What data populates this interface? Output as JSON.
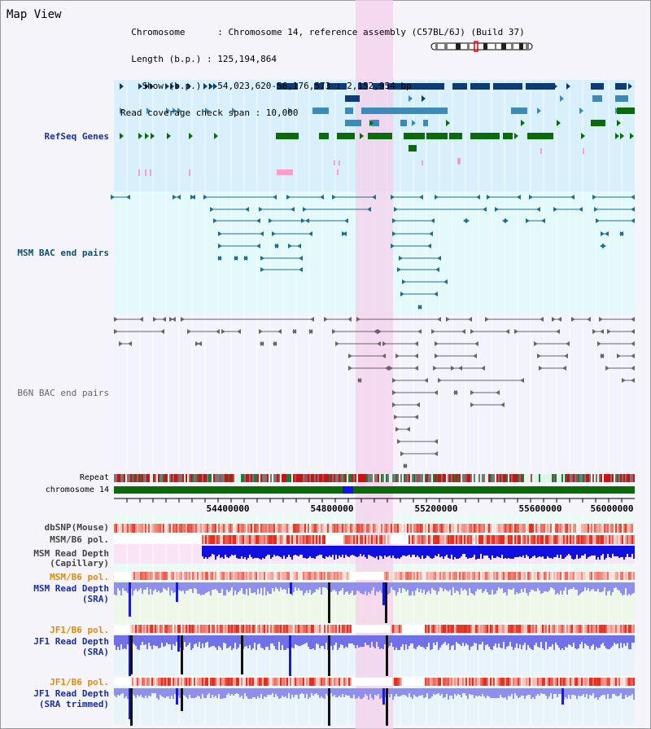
{
  "header": {
    "title": "Map View",
    "info_lines": [
      "  Chromosome      : Chromosome 14, reference assembly (C57BL/6J) (Build 37)",
      "  Length (b.p.) : 125,194,864",
      "    Show (b.p.) : 54,023,620-56,176,573 : 2,152,954 bp",
      "Read coverage check span : 10,000"
    ]
  },
  "tracks": {
    "refseq": "RefSeq Genes",
    "msm_bac": "MSM BAC end pairs",
    "b6n_bac": "B6N BAC end pairs",
    "repeat": "Repeat",
    "chromosome": "chromosome 14",
    "dbsnp": "dbSNP(Mouse)",
    "msm_b6_pol_1": "MSM/B6 pol.",
    "msm_read_depth_cap_1": "MSM Read Depth",
    "msm_read_depth_cap_2": "(Capillary)",
    "msm_b6_pol_2": "MSM/B6 pol.",
    "msm_read_depth_sra_1": "MSM Read Depth",
    "msm_read_depth_sra_2": "(SRA)",
    "jf1_b6_pol_1": "JF1/B6 pol.",
    "jf1_read_depth_sra_1": "JF1 Read Depth",
    "jf1_read_depth_sra_2": "(SRA)",
    "jf1_b6_pol_2": "JF1/B6 pol.",
    "jf1_read_depth_trim_1": "JF1 Read Depth",
    "jf1_read_depth_trim_2": "(SRA trimmed)"
  },
  "axis": {
    "ticks": [
      "54400000",
      "54800000",
      "55200000",
      "55600000",
      "56000000"
    ]
  },
  "colors": {
    "highlight": "#f6d0ec",
    "refseq_bg": "#d8f0fb",
    "msm_bg": "#e4fafa",
    "b6n_bg": "#f3f3fb",
    "dark_blue": "#0d3b75",
    "mid_blue": "#3b8ab8",
    "green": "#0b6b0b",
    "pink": "#ff9cc8",
    "orange_label": "#e08a00",
    "navy_label": "#1a2fa0",
    "grey_label": "#555555"
  }
}
